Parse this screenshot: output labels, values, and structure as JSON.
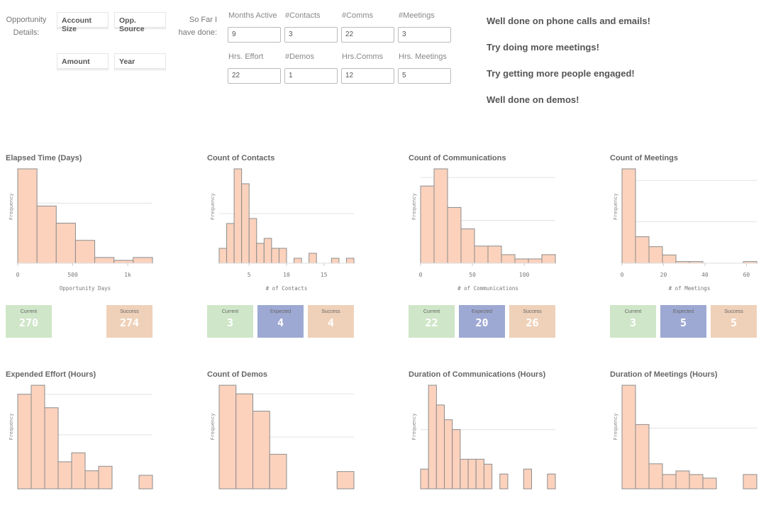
{
  "filters": {
    "label": "Opportunity Details:",
    "dimensions": [
      "Account Size",
      "Opp. Source",
      "Amount",
      "Year"
    ]
  },
  "progress": {
    "label": "So Far I have done:",
    "fields": [
      {
        "label": "Months Active",
        "value": "9"
      },
      {
        "label": "#Contacts",
        "value": "3"
      },
      {
        "label": "#Comms",
        "value": "22"
      },
      {
        "label": "#Meetings",
        "value": "3"
      },
      {
        "label": "Hrs. Effort",
        "value": "22"
      },
      {
        "label": "#Demos",
        "value": "1"
      },
      {
        "label": "Hrs.Comms",
        "value": "12"
      },
      {
        "label": "Hrs. Meetings",
        "value": "5"
      }
    ]
  },
  "messages": [
    "Well done on phone calls and emails!",
    "Try doing more meetings!",
    "Try getting more people engaged!",
    "Well done on demos!"
  ],
  "colors": {
    "bar_fill": "#fcd2bd",
    "bar_stroke": "#8c8c8c",
    "current": "#cfe6c8",
    "expected": "#9ea9d3",
    "success": "#efd1b9"
  },
  "chart_data": [
    {
      "type": "bar",
      "title": "Elapsed Time (Days)",
      "ylabel": "Frequency",
      "xlabel": "Opportunity Days",
      "bin_start": 0,
      "bin_width": 175,
      "values": [
        33,
        20,
        14,
        8,
        2,
        1,
        2
      ],
      "xlim": [
        0,
        1225
      ],
      "xticks": [
        0,
        500,
        1000
      ],
      "xtick_labels": [
        "0",
        "500",
        "1k"
      ],
      "y_gridlines": [
        21
      ],
      "kpis": [
        {
          "label": "Current",
          "value": "270",
          "kind": "current"
        },
        {
          "label": "Success",
          "value": "274",
          "kind": "success"
        }
      ]
    },
    {
      "type": "bar",
      "title": "Count of Contacts",
      "ylabel": "Frequency",
      "xlabel": "# of Contacts",
      "bin_start": 1,
      "bin_width": 1,
      "values": [
        3,
        8,
        19,
        16,
        9,
        4,
        5,
        3,
        3,
        0,
        1,
        0,
        2,
        0,
        0,
        1,
        0,
        1
      ],
      "xlim": [
        1,
        19
      ],
      "xticks": [
        5,
        10,
        15
      ],
      "xtick_labels": [
        "5",
        "10",
        "15"
      ],
      "y_gridlines": [
        10
      ],
      "kpis": [
        {
          "label": "Current",
          "value": "3",
          "kind": "current"
        },
        {
          "label": "Expected",
          "value": "4",
          "kind": "expected"
        },
        {
          "label": "Success",
          "value": "4",
          "kind": "success"
        }
      ]
    },
    {
      "type": "bar",
      "title": "Count of Communications",
      "ylabel": "Frequency",
      "xlabel": "# of Communications",
      "bin_start": 0,
      "bin_width": 13,
      "values": [
        18,
        22,
        13,
        8,
        4,
        4,
        2,
        1,
        1,
        2
      ],
      "xlim": [
        0,
        130
      ],
      "xticks": [
        0,
        50,
        100
      ],
      "xtick_labels": [
        "0",
        "50",
        "100"
      ],
      "y_gridlines": [
        10,
        20
      ],
      "kpis": [
        {
          "label": "Current",
          "value": "22",
          "kind": "current"
        },
        {
          "label": "Expected",
          "value": "20",
          "kind": "expected"
        },
        {
          "label": "Success",
          "value": "26",
          "kind": "success"
        }
      ]
    },
    {
      "type": "bar",
      "title": "Count of Meetings",
      "ylabel": "Frequency",
      "xlabel": "# of Meetings",
      "bin_start": 0,
      "bin_width": 6.5,
      "values": [
        57,
        16,
        10,
        5,
        1,
        1,
        0,
        0,
        0,
        1
      ],
      "xlim": [
        0,
        65
      ],
      "xticks": [
        0,
        20,
        40,
        60
      ],
      "xtick_labels": [
        "0",
        "20",
        "40",
        "60"
      ],
      "y_gridlines": [
        25,
        50
      ],
      "kpis": [
        {
          "label": "Current",
          "value": "3",
          "kind": "current"
        },
        {
          "label": "Expected",
          "value": "5",
          "kind": "expected"
        },
        {
          "label": "Success",
          "value": "5",
          "kind": "success"
        }
      ]
    },
    {
      "type": "bar",
      "title": "Expended Effort (Hours)",
      "ylabel": "Frequency",
      "values": [
        21,
        23,
        18,
        6,
        8,
        4,
        5,
        0,
        0,
        3
      ],
      "y_gridlines": [
        12,
        21
      ]
    },
    {
      "type": "bar",
      "title": "Count of Demos",
      "ylabel": "Frequency",
      "values": [
        12,
        11,
        9,
        4,
        0,
        0,
        0,
        2
      ],
      "y_gridlines": [
        6,
        11
      ]
    },
    {
      "type": "bar",
      "title": "Duration of Communications (Hours)",
      "ylabel": "Frequency",
      "values": [
        4,
        21,
        17,
        14,
        12,
        6,
        6,
        6,
        5,
        0,
        3,
        0,
        0,
        4,
        0,
        0,
        3
      ],
      "y_gridlines": [
        12
      ]
    },
    {
      "type": "bar",
      "title": "Duration of Meetings (Hours)",
      "ylabel": "Frequency",
      "values": [
        29,
        18,
        7,
        4,
        5,
        4,
        3,
        0,
        0,
        4
      ],
      "y_gridlines": [
        17
      ]
    }
  ]
}
